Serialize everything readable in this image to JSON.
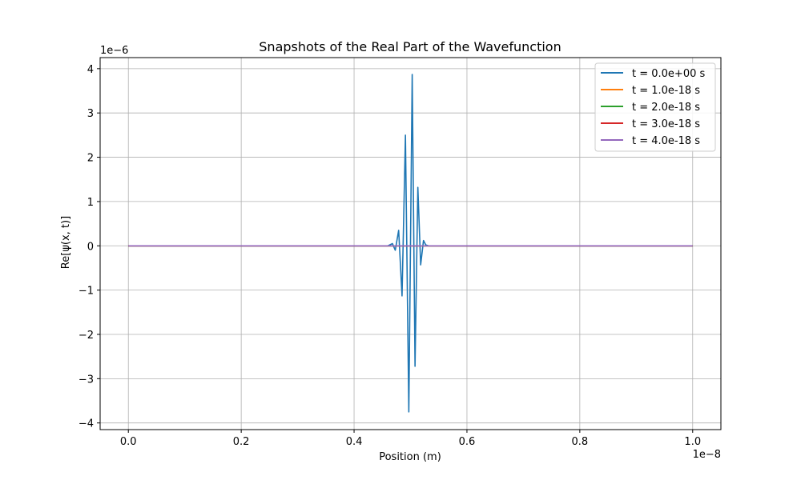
{
  "chart_data": {
    "type": "line",
    "title": "Snapshots of the Real Part of the Wavefunction",
    "xlabel": "Position (m)",
    "ylabel": "Re[ψ(x, t)]",
    "x_offset_text": "1e−8",
    "y_offset_text": "1e−6",
    "xlim": [
      -0.05,
      1.05
    ],
    "ylim": [
      -4.15,
      4.25
    ],
    "x_ticks": [
      0.0,
      0.2,
      0.4,
      0.6,
      0.8,
      1.0
    ],
    "x_tick_labels": [
      "0.0",
      "0.2",
      "0.4",
      "0.6",
      "0.8",
      "1.0"
    ],
    "y_ticks": [
      -4,
      -3,
      -2,
      -1,
      0,
      1,
      2,
      3,
      4
    ],
    "y_tick_labels": [
      "−4",
      "−3",
      "−2",
      "−1",
      "0",
      "1",
      "2",
      "3",
      "4"
    ],
    "grid": true,
    "legend_position": "top-right",
    "series": [
      {
        "name": "t = 0.0e+00 s",
        "color": "#1f77b4",
        "x": [
          0.0,
          0.46,
          0.468,
          0.473,
          0.479,
          0.485,
          0.491,
          0.497,
          0.503,
          0.508,
          0.513,
          0.518,
          0.523,
          0.527,
          0.532,
          0.54,
          1.0
        ],
        "y": [
          0,
          0,
          0.05,
          -0.1,
          0.35,
          -1.13,
          2.5,
          -3.75,
          3.87,
          -2.72,
          1.32,
          -0.43,
          0.12,
          0.02,
          0,
          0,
          0
        ]
      },
      {
        "name": "t = 1.0e-18 s",
        "color": "#ff7f0e",
        "x": [
          0.0,
          1.0
        ],
        "y": [
          0,
          0
        ]
      },
      {
        "name": "t = 2.0e-18 s",
        "color": "#2ca02c",
        "x": [
          0.0,
          1.0
        ],
        "y": [
          0,
          0
        ]
      },
      {
        "name": "t = 3.0e-18 s",
        "color": "#d62728",
        "x": [
          0.0,
          1.0
        ],
        "y": [
          0,
          0
        ]
      },
      {
        "name": "t = 4.0e-18 s",
        "color": "#9467bd",
        "x": [
          0.0,
          1.0
        ],
        "y": [
          0,
          0
        ]
      }
    ]
  }
}
